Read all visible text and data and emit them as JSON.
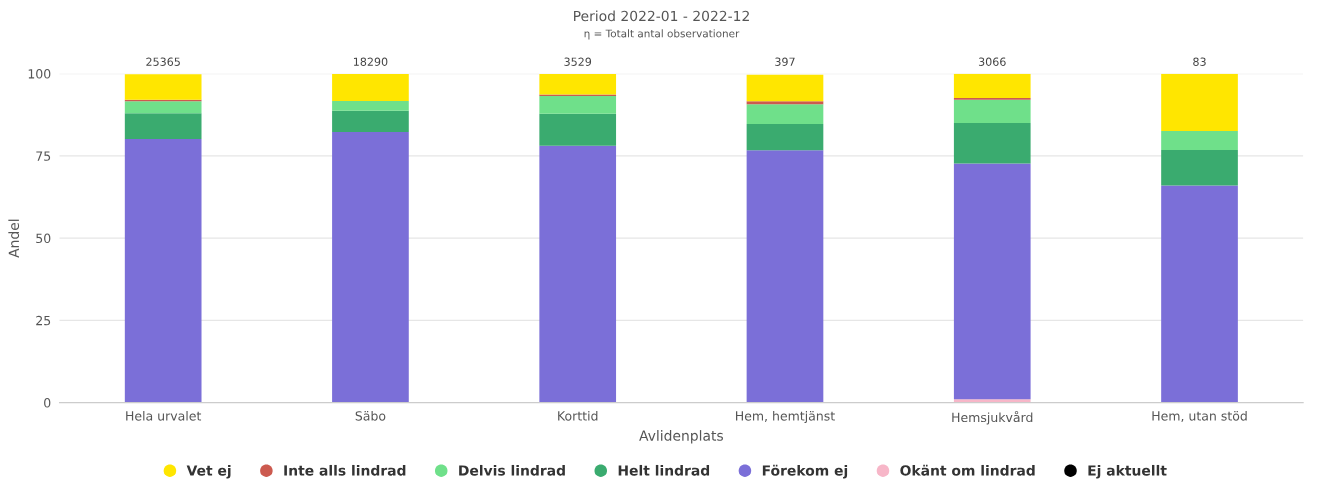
{
  "chart_data": {
    "type": "bar",
    "title": "Period 2022-01 - 2022-12",
    "subtitle": "η = Totalt antal observationer",
    "xlabel": "Avlidenplats",
    "ylabel": "Andel",
    "categories": [
      "Hela urvalet",
      "Säbo",
      "Korttid",
      "Hem, hemtjänst",
      "Hemsjukvård",
      "Hem, utan stöd"
    ],
    "stacked": true,
    "series": [
      {
        "name": "Ej aktuellt",
        "color": "#000000",
        "values": [
          0,
          0,
          0,
          0,
          0,
          0
        ]
      },
      {
        "name": "Okänt om lindrad",
        "color": "#f7b6c8",
        "values": [
          0,
          0,
          0,
          0,
          1.0,
          0
        ]
      },
      {
        "name": "Förekom ej",
        "color": "#7b6fd8",
        "values": [
          80.1,
          82.3,
          78.1,
          76.7,
          71.7,
          66
        ]
      },
      {
        "name": "Helt lindrad",
        "color": "#3aab6f",
        "values": [
          7.9,
          6.4,
          9.7,
          8.0,
          12.3,
          10.8
        ]
      },
      {
        "name": "Delvis lindrad",
        "color": "#6fe08a",
        "values": [
          3.6,
          3.0,
          5.4,
          6.0,
          7.1,
          5.8
        ]
      },
      {
        "name": "Inte alls lindrad",
        "color": "#cc5a4f",
        "values": [
          0.5,
          0,
          0.5,
          0.9,
          0.5,
          0
        ]
      },
      {
        "name": "Vet ej",
        "color": "#ffe600",
        "values": [
          7.7,
          8.2,
          6.2,
          8.1,
          7.4,
          17.4
        ]
      }
    ],
    "annotations": [
      {
        "text": "25365",
        "x": "Hela urvalet",
        "y": 100
      },
      {
        "text": "18290",
        "x": "Säbo",
        "y": 100
      },
      {
        "text": "3529",
        "x": "Korttid",
        "y": 100
      },
      {
        "text": "397",
        "x": "Hem, hemtjänst",
        "y": 100
      },
      {
        "text": "3066",
        "x": "Hemsjukvård",
        "y": 100
      },
      {
        "text": "83",
        "x": "Hem, utan stöd",
        "y": 100
      }
    ],
    "ylim": [
      0,
      100
    ],
    "yticks": [
      0,
      25,
      50,
      75,
      100
    ],
    "grid": "y",
    "legend": "bottom"
  }
}
